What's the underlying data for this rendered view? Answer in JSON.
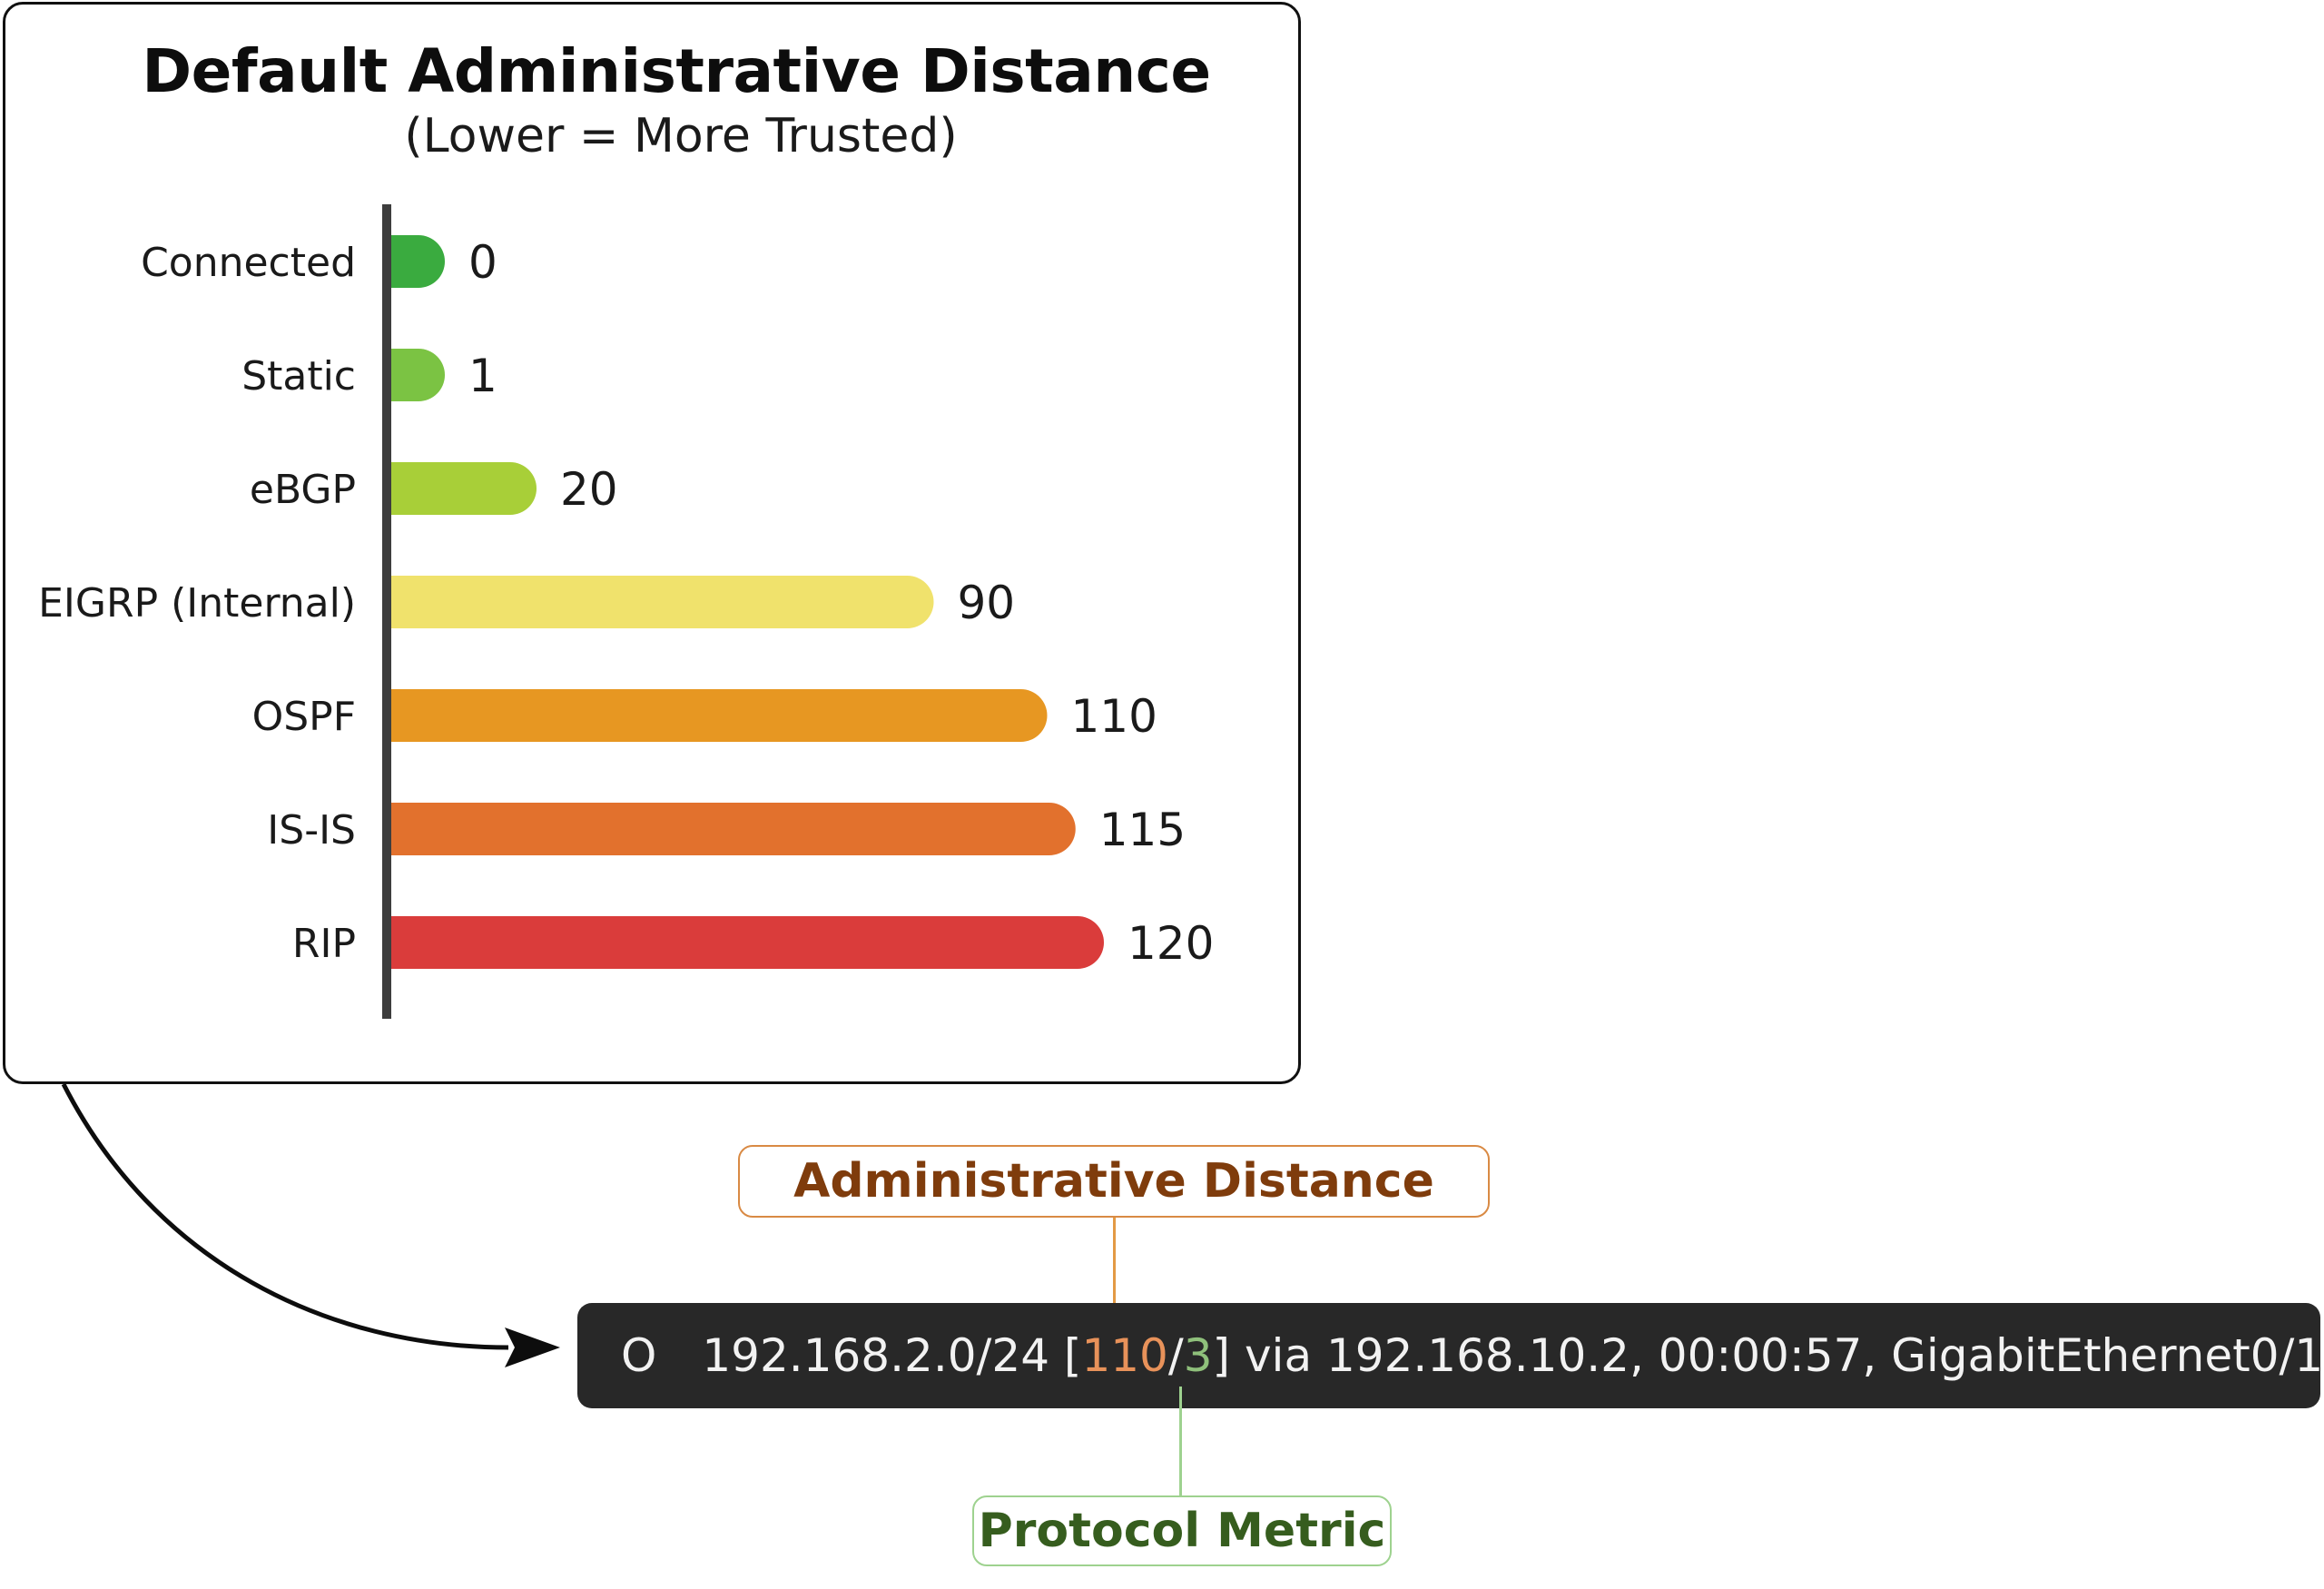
{
  "chart_data": {
    "type": "bar",
    "orientation": "horizontal",
    "title": "Default Administrative Distance",
    "subtitle": "(Lower = More Trusted)",
    "categories": [
      "Connected",
      "Static",
      "eBGP",
      "EIGRP (Internal)",
      "OSPF",
      "IS-IS",
      "RIP"
    ],
    "values": [
      0,
      1,
      20,
      90,
      110,
      115,
      120
    ],
    "value_labels": [
      "0",
      "1",
      "20",
      "90",
      "110",
      "115",
      "120"
    ],
    "colors": [
      "#3aab3f",
      "#7bc343",
      "#a8cf38",
      "#f0e26c",
      "#e79722",
      "#e2712d",
      "#da3c3b"
    ],
    "xlim": [
      0,
      120
    ],
    "grid": false,
    "legend": "none"
  },
  "callouts": {
    "administrative_distance": "Administrative Distance",
    "protocol_metric": "Protocol Metric"
  },
  "route_entry": {
    "code": "O",
    "prefix": "192.168.2.0/24",
    "open_bracket": "[",
    "ad_value": "110",
    "separator": "/",
    "metric_value": "3",
    "close_bracket": "]",
    "rest": "via 192.168.10.2, 00:00:57, GigabitEthernet0/1"
  }
}
